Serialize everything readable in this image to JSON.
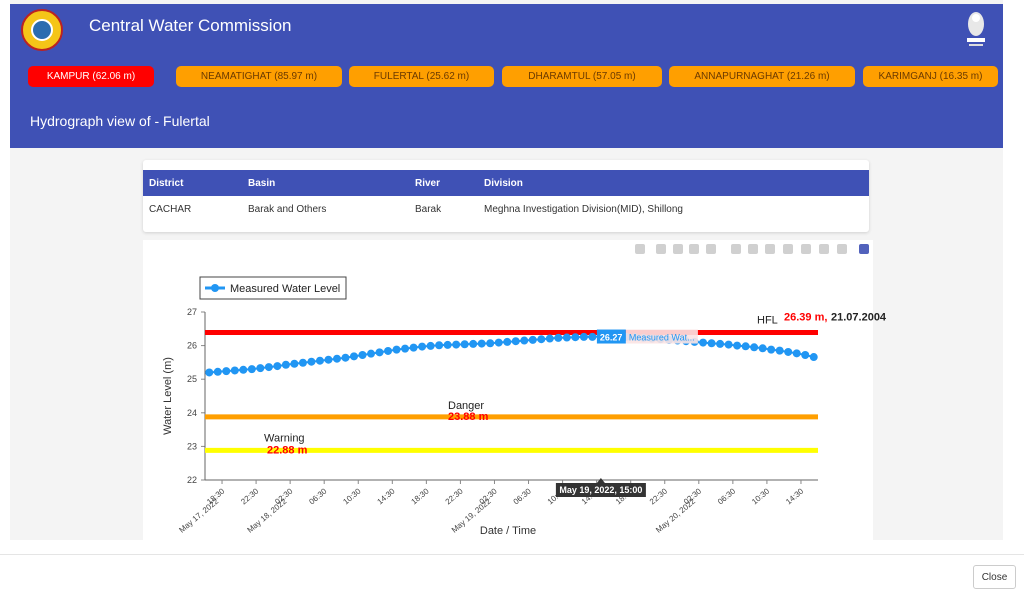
{
  "app": {
    "title": "Central Water Commission"
  },
  "stations": [
    {
      "label": "KAMPUR (62.06 m)",
      "active": true
    },
    {
      "label": "NEAMATIGHAT (85.97 m)",
      "active": false
    },
    {
      "label": "FULERTAL (25.62 m)",
      "active": false
    },
    {
      "label": "DHARAMTUL (57.05 m)",
      "active": false
    },
    {
      "label": "ANNAPURNAGHAT (21.26 m)",
      "active": false
    },
    {
      "label": "KARIMGANJ (16.35 m)",
      "active": false
    }
  ],
  "view_title": "Hydrograph view of - Fulertal",
  "table": {
    "headers": [
      "District",
      "Basin",
      "River",
      "Division"
    ],
    "row": [
      "CACHAR",
      "Barak and Others",
      "Barak",
      "Meghna Investigation Division(MID), Shillong"
    ]
  },
  "modebar": [
    "camera-icon",
    "zoom-icon",
    "pan-icon",
    "box-select-icon",
    "lasso-icon",
    "zoom-in-icon",
    "zoom-out-icon",
    "autoscale-icon",
    "reset-icon",
    "spike-icon",
    "hover-closest-icon",
    "hover-compare-icon",
    "plotly-logo-icon"
  ],
  "footer": {
    "close_label": "Close"
  },
  "chart_data": {
    "type": "line",
    "xlabel": "Date / Time",
    "ylabel": "Water Level (m)",
    "ylim": [
      22,
      27
    ],
    "yticks": [
      "22",
      "23",
      "24",
      "25",
      "26",
      "27"
    ],
    "xticks": [
      {
        "t": 18.5,
        "label": "18:30",
        "date": "May 17, 2022"
      },
      {
        "t": 22.5,
        "label": "22:30",
        "date": ""
      },
      {
        "t": 26.5,
        "label": "02:30",
        "date": "May 18, 2022"
      },
      {
        "t": 30.5,
        "label": "06:30",
        "date": ""
      },
      {
        "t": 34.5,
        "label": "10:30",
        "date": ""
      },
      {
        "t": 38.5,
        "label": "14:30",
        "date": ""
      },
      {
        "t": 42.5,
        "label": "18:30",
        "date": ""
      },
      {
        "t": 46.5,
        "label": "22:30",
        "date": ""
      },
      {
        "t": 50.5,
        "label": "02:30",
        "date": "May 19, 2022"
      },
      {
        "t": 54.5,
        "label": "06:30",
        "date": ""
      },
      {
        "t": 58.5,
        "label": "10:30",
        "date": ""
      },
      {
        "t": 62.5,
        "label": "14:30",
        "date": ""
      },
      {
        "t": 66.5,
        "label": "18:30",
        "date": ""
      },
      {
        "t": 70.5,
        "label": "22:30",
        "date": ""
      },
      {
        "t": 74.5,
        "label": "02:30",
        "date": "May 20, 2022"
      },
      {
        "t": 78.5,
        "label": "06:30",
        "date": ""
      },
      {
        "t": 82.5,
        "label": "10:30",
        "date": ""
      },
      {
        "t": 86.5,
        "label": "14:30",
        "date": ""
      }
    ],
    "xrange": [
      16.5,
      88.5
    ],
    "legend": {
      "label": "Measured Water Level",
      "position": "top-left"
    },
    "series": [
      {
        "name": "Measured Water Level",
        "color": "#2196f3",
        "x": [
          17,
          18,
          19,
          20,
          21,
          22,
          23,
          24,
          25,
          26,
          27,
          28,
          29,
          30,
          31,
          32,
          33,
          34,
          35,
          36,
          37,
          38,
          39,
          40,
          41,
          42,
          43,
          44,
          45,
          46,
          47,
          48,
          49,
          50,
          51,
          52,
          53,
          54,
          55,
          56,
          57,
          58,
          59,
          60,
          61,
          62,
          63,
          64,
          65,
          66,
          67,
          68,
          69,
          70,
          71,
          72,
          73,
          74,
          75,
          76,
          77,
          78,
          79,
          80,
          81,
          82,
          83,
          84,
          85,
          86,
          87,
          88
        ],
        "y": [
          25.2,
          25.22,
          25.24,
          25.26,
          25.28,
          25.3,
          25.33,
          25.36,
          25.39,
          25.43,
          25.46,
          25.49,
          25.52,
          25.55,
          25.58,
          25.61,
          25.64,
          25.68,
          25.72,
          25.76,
          25.8,
          25.84,
          25.88,
          25.91,
          25.94,
          25.97,
          25.99,
          26.01,
          26.02,
          26.03,
          26.04,
          26.05,
          26.06,
          26.07,
          26.09,
          26.11,
          26.13,
          26.15,
          26.17,
          26.19,
          26.21,
          26.23,
          26.24,
          26.25,
          26.26,
          26.26,
          26.27,
          26.27,
          26.27,
          26.26,
          26.25,
          26.23,
          26.21,
          26.19,
          26.17,
          26.15,
          26.13,
          26.11,
          26.09,
          26.07,
          26.05,
          26.03,
          26.0,
          25.98,
          25.95,
          25.92,
          25.88,
          25.85,
          25.81,
          25.77,
          25.72,
          25.66
        ]
      }
    ],
    "reference_lines": [
      {
        "name": "HFL",
        "value": 26.39,
        "color": "#ff0000",
        "label": "HFL",
        "value_label": "26.39 m,",
        "date_label": "21.07.2004"
      },
      {
        "name": "Danger",
        "value": 23.88,
        "color": "#ff9f00",
        "label": "Danger",
        "value_label": "23.88 m"
      },
      {
        "name": "Warning",
        "value": 22.88,
        "color": "#ffff00",
        "label": "Warning",
        "value_label": "22.88 m"
      }
    ],
    "hover": {
      "y_label": "26.27",
      "trace_label": "Measured Wat...",
      "x_label": "May 19, 2022, 15:00",
      "x": 63
    }
  }
}
